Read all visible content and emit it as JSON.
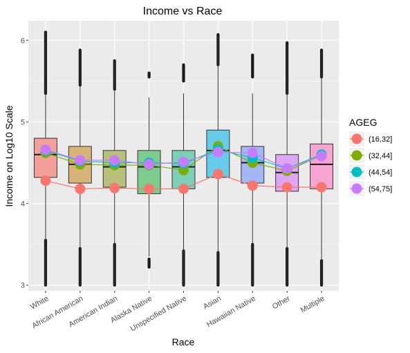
{
  "chart_data": {
    "type": "box",
    "title": "Income vs Race",
    "xlabel": "Race",
    "ylabel": "Income on Log10 Scale",
    "ylim": [
      2.93,
      6.24
    ],
    "y_ticks": [
      "3",
      "4",
      "5",
      "6"
    ],
    "grid": true,
    "categories": [
      "White",
      "African American",
      "American Indian",
      "Alaska Native",
      "Unspecified Native",
      "Asian",
      "Hawaiian Native",
      "Other",
      "Multiple"
    ],
    "box_colors": [
      "#f4a09a",
      "#d7b47a",
      "#b8c07c",
      "#7dcc8f",
      "#7dcfb7",
      "#68cbe9",
      "#a3b7f5",
      "#dfa7f2",
      "#f6a4d2"
    ],
    "boxes": [
      {
        "q1": 4.32,
        "median": 4.6,
        "q3": 4.8,
        "whisker_low": 3.0,
        "whisker_high": 6.1
      },
      {
        "q1": 4.25,
        "median": 4.48,
        "q3": 4.7,
        "whisker_low": 3.0,
        "whisker_high": 5.88
      },
      {
        "q1": 4.2,
        "median": 4.45,
        "q3": 4.65,
        "whisker_low": 3.0,
        "whisker_high": 5.75
      },
      {
        "q1": 4.12,
        "median": 4.45,
        "q3": 4.65,
        "whisker_low": 3.35,
        "whisker_high": 5.3
      },
      {
        "q1": 4.18,
        "median": 4.45,
        "q3": 4.65,
        "whisker_low": 3.0,
        "whisker_high": 5.35
      },
      {
        "q1": 4.32,
        "median": 4.65,
        "q3": 4.9,
        "whisker_low": 3.0,
        "whisker_high": 6.05
      },
      {
        "q1": 4.25,
        "median": 4.5,
        "q3": 4.7,
        "whisker_low": 3.0,
        "whisker_high": 5.35
      },
      {
        "q1": 4.15,
        "median": 4.38,
        "q3": 4.6,
        "whisker_low": 3.0,
        "whisker_high": 5.95
      },
      {
        "q1": 4.18,
        "median": 4.48,
        "q3": 4.73,
        "whisker_low": 3.0,
        "whisker_high": 5.87
      }
    ],
    "outliers": [
      {
        "low": [
          3.0,
          3.55
        ],
        "high": [
          5.35,
          6.1
        ]
      },
      {
        "low": [
          3.0,
          3.45
        ],
        "high": [
          5.45,
          5.88
        ]
      },
      {
        "low": [
          3.0,
          3.5
        ],
        "high": [
          5.4,
          5.75
        ]
      },
      {
        "low": [
          3.22,
          3.32
        ],
        "high": [
          5.55,
          5.6
        ]
      },
      {
        "low": [
          3.0,
          3.42
        ],
        "high": [
          5.5,
          5.7
        ]
      },
      {
        "low": [
          3.0,
          3.4
        ],
        "high": [
          5.7,
          6.07
        ]
      },
      {
        "low": [
          3.0,
          3.5
        ],
        "high": [
          5.55,
          5.82
        ]
      },
      {
        "low": [
          3.0,
          3.45
        ],
        "high": [
          5.35,
          5.97
        ]
      },
      {
        "low": [
          3.0,
          3.3
        ],
        "high": [
          5.55,
          5.88
        ]
      }
    ],
    "legend_title": "AGEG",
    "legend_position": "right",
    "series": [
      {
        "name": "(16,32]",
        "color": "#f8766d",
        "values": [
          4.28,
          4.18,
          4.19,
          4.18,
          4.18,
          4.36,
          4.22,
          4.2,
          4.2
        ]
      },
      {
        "name": "(32,44]",
        "color": "#7cae00",
        "values": [
          4.62,
          4.48,
          4.47,
          4.47,
          4.41,
          4.7,
          4.5,
          4.4,
          4.59
        ]
      },
      {
        "name": "(44,54]",
        "color": "#00bfc4",
        "values": [
          4.65,
          4.52,
          4.5,
          4.5,
          4.49,
          4.66,
          4.56,
          4.43,
          4.6
        ]
      },
      {
        "name": "(54,75]",
        "color": "#c77cff",
        "values": [
          4.66,
          4.53,
          4.53,
          4.48,
          4.51,
          4.63,
          4.62,
          4.43,
          4.58
        ]
      }
    ]
  }
}
